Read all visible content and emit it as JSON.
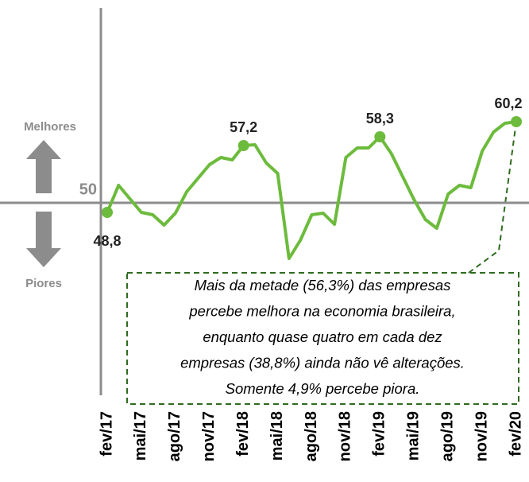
{
  "chart_data": {
    "type": "line",
    "categories": [
      "fev/17",
      null,
      null,
      "mai/17",
      null,
      null,
      "ago/17",
      null,
      null,
      "nov/17",
      null,
      null,
      "fev/18",
      null,
      null,
      "mai/18",
      null,
      null,
      "ago/18",
      null,
      null,
      "nov/18",
      null,
      null,
      "fev/19",
      null,
      null,
      "mai/19",
      null,
      null,
      "ago/19",
      null,
      null,
      "nov/19",
      null,
      null,
      "fev/20"
    ],
    "series": [
      {
        "color": "#6cbb3c",
        "values": [
          48.8,
          52.2,
          50.5,
          48.8,
          48.5,
          47.2,
          48.7,
          51.4,
          53.1,
          54.8,
          55.7,
          55.4,
          57.2,
          57.3,
          55.0,
          53.7,
          43.0,
          45.3,
          48.5,
          48.7,
          47.3,
          55.7,
          56.9,
          56.9,
          58.3,
          56.2,
          53.3,
          50.4,
          47.9,
          46.8,
          51.1,
          52.2,
          51.9,
          56.5,
          58.9,
          60.0,
          60.2
        ],
        "value_labels": [
          "48,8",
          null,
          null,
          null,
          null,
          null,
          null,
          null,
          null,
          null,
          null,
          null,
          "57,2",
          null,
          null,
          null,
          null,
          null,
          null,
          null,
          null,
          null,
          null,
          null,
          "58,3",
          null,
          null,
          null,
          null,
          null,
          null,
          null,
          null,
          null,
          null,
          null,
          "60,2"
        ]
      }
    ],
    "ylim": [
      26,
      74.5
    ],
    "yticks": [
      50
    ],
    "up_label": "Melhores",
    "down_label": "Piores",
    "annotation": [
      "Mais da metade (56,3%)  das empresas",
      "percebe melhora na economia brasileira,",
      "enquanto quase quatro em cada dez",
      "empresas (38,8%) ainda não vê alterações.",
      "Somente 4,9% percebe piora."
    ]
  }
}
